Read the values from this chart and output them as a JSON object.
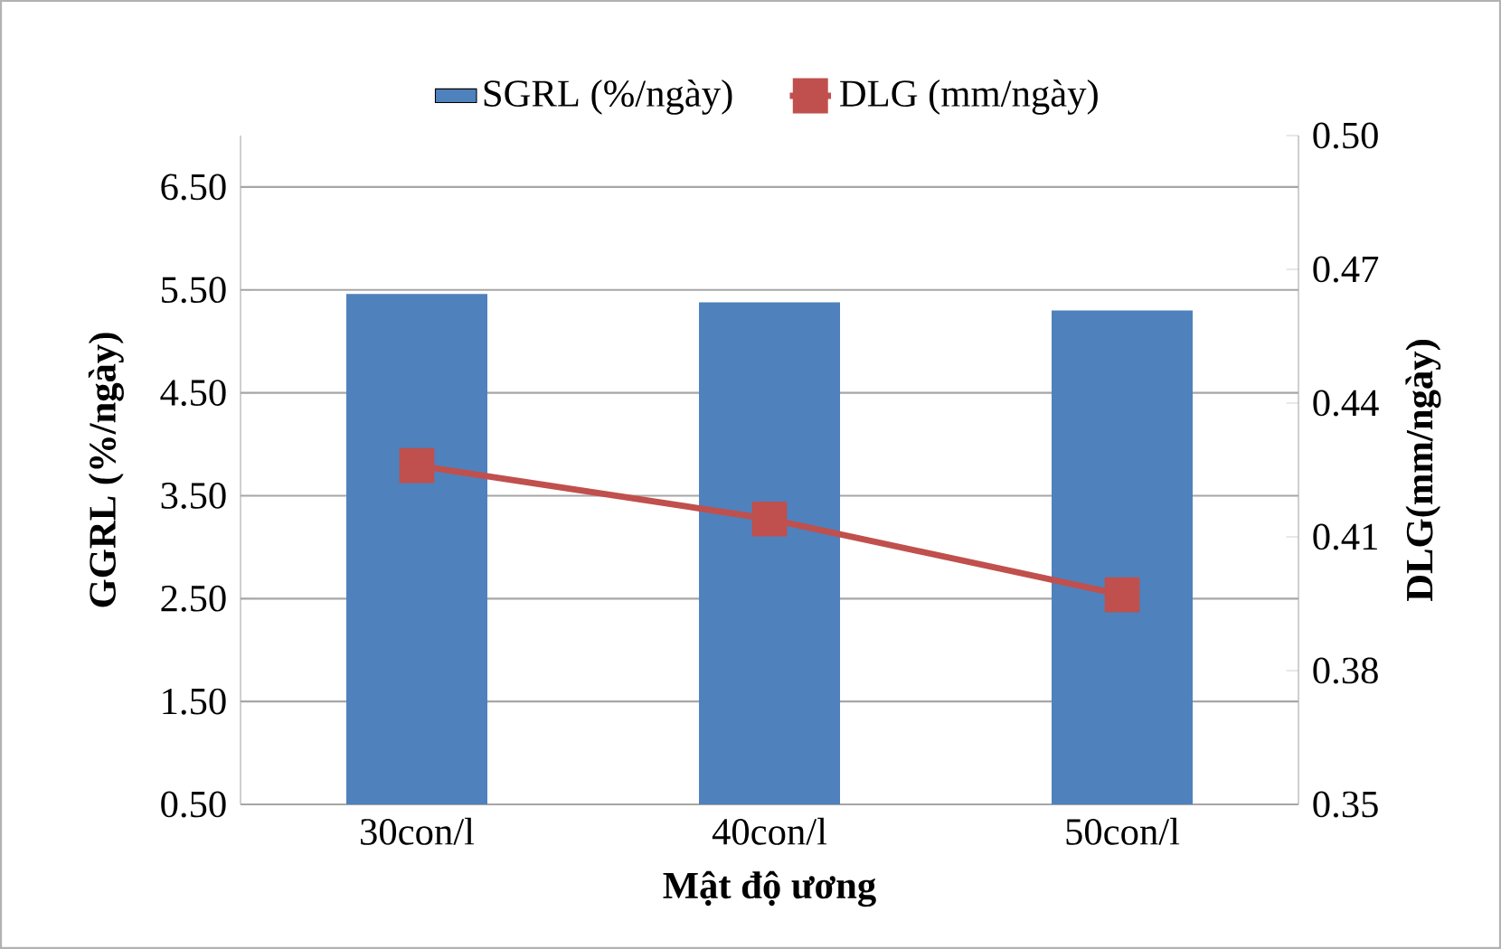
{
  "chart_data": {
    "type": "bar",
    "categories": [
      "30con/l",
      "40con/l",
      "50con/l"
    ],
    "xlabel": "Mật độ ương",
    "ylabel": "GGRL (%/ngày)",
    "y2label": "DLG(mm/ngày)",
    "series": [
      {
        "name": "SGRL (%/ngày)",
        "color": "#4f81bd",
        "values": [
          5.46,
          5.38,
          5.3
        ]
      },
      {
        "name": "DLG (mm/ngày)",
        "type": "line",
        "axis": "y2",
        "color": "#c0504d",
        "marker": "square",
        "values": [
          0.426,
          0.414,
          0.397
        ]
      }
    ],
    "ylim": [
      0.5,
      7.0
    ],
    "yticks": [
      {
        "value": 0.5,
        "label": "0.50"
      },
      {
        "value": 1.5,
        "label": "1.50"
      },
      {
        "value": 2.5,
        "label": "2.50"
      },
      {
        "value": 3.5,
        "label": "3.50"
      },
      {
        "value": 4.5,
        "label": "4.50"
      },
      {
        "value": 5.5,
        "label": "5.50"
      },
      {
        "value": 6.5,
        "label": "6.50"
      }
    ],
    "y2lim": [
      0.35,
      0.5
    ],
    "y2ticks": [
      {
        "value": 0.35,
        "label": "0.35"
      },
      {
        "value": 0.38,
        "label": "0.38"
      },
      {
        "value": 0.41,
        "label": "0.41"
      },
      {
        "value": 0.44,
        "label": "0.44"
      },
      {
        "value": 0.47,
        "label": "0.47"
      },
      {
        "value": 0.5,
        "label": "0.50"
      }
    ],
    "grid": "y",
    "legend": "top"
  }
}
